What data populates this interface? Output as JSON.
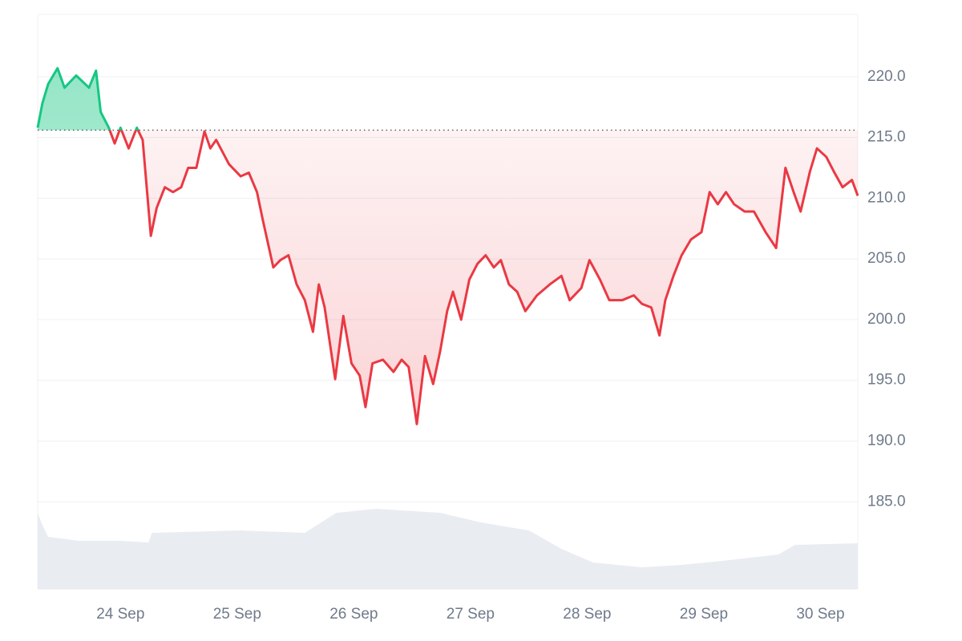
{
  "chart_data": {
    "type": "line",
    "x": [
      23.29,
      23.33,
      23.38,
      23.46,
      23.52,
      23.62,
      23.73,
      23.79,
      23.83,
      23.9,
      23.95,
      24.0,
      24.07,
      24.14,
      24.19,
      24.26,
      24.31,
      24.38,
      24.45,
      24.52,
      24.58,
      24.65,
      24.72,
      24.77,
      24.82,
      24.93,
      25.03,
      25.1,
      25.17,
      25.22,
      25.31,
      25.37,
      25.44,
      25.51,
      25.58,
      25.65,
      25.7,
      25.75,
      25.84,
      25.91,
      25.98,
      26.05,
      26.1,
      26.16,
      26.25,
      26.34,
      26.41,
      26.47,
      26.54,
      26.61,
      26.68,
      26.74,
      26.8,
      26.85,
      26.92,
      26.99,
      27.06,
      27.13,
      27.2,
      27.26,
      27.33,
      27.4,
      27.47,
      27.57,
      27.68,
      27.78,
      27.85,
      27.95,
      28.02,
      28.11,
      28.19,
      28.3,
      28.4,
      28.47,
      28.55,
      28.62,
      28.67,
      28.74,
      28.81,
      28.89,
      28.98,
      29.05,
      29.12,
      29.19,
      29.26,
      29.35,
      29.43,
      29.53,
      29.62,
      29.7,
      29.77,
      29.83,
      29.91,
      29.97,
      30.05,
      30.12,
      30.19,
      30.27,
      30.32
    ],
    "series": [
      {
        "values": [
          215.8,
          217.8,
          219.4,
          220.7,
          219.1,
          220.1,
          219.1,
          220.5,
          217.1,
          215.8,
          214.5,
          215.8,
          214.1,
          215.8,
          214.8,
          206.9,
          209.2,
          210.9,
          210.5,
          210.9,
          212.5,
          212.5,
          215.5,
          214.1,
          214.8,
          212.8,
          211.8,
          212.1,
          210.5,
          208.2,
          204.3,
          204.9,
          205.3,
          202.9,
          201.6,
          199.0,
          202.9,
          201.0,
          195.1,
          200.3,
          196.4,
          195.4,
          192.8,
          196.4,
          196.7,
          195.7,
          196.7,
          196.1,
          191.4,
          197.0,
          194.7,
          197.4,
          200.7,
          202.3,
          200.0,
          203.3,
          204.6,
          205.3,
          204.3,
          204.9,
          202.9,
          202.3,
          200.7,
          202.0,
          202.9,
          203.6,
          201.6,
          202.6,
          204.9,
          203.3,
          201.6,
          201.6,
          202.0,
          201.3,
          201.0,
          198.7,
          201.6,
          203.6,
          205.3,
          206.6,
          207.2,
          210.5,
          209.5,
          210.5,
          209.5,
          208.9,
          208.9,
          207.2,
          205.9,
          212.5,
          210.5,
          208.9,
          212.2,
          214.1,
          213.4,
          212.1,
          210.9,
          211.5,
          210.2
        ]
      }
    ],
    "reference": 215.6,
    "up_color": "#16c784",
    "down_color": "#ea3943",
    "volume": {
      "x": [
        23.29,
        23.33,
        23.38,
        23.65,
        24.0,
        24.24,
        24.27,
        25.03,
        25.58,
        25.85,
        26.19,
        26.74,
        27.09,
        27.5,
        27.78,
        28.05,
        28.47,
        28.81,
        29.16,
        29.64,
        29.78,
        30.32
      ],
      "values": [
        95,
        80,
        65,
        60,
        60,
        58,
        70,
        73,
        70,
        95,
        100,
        95,
        83,
        73,
        50,
        33,
        27,
        30,
        35,
        43,
        55,
        57
      ],
      "color": "#e9edf2"
    },
    "xlim": [
      23.29,
      30.32
    ],
    "ylim": [
      177.83,
      225.13
    ],
    "xticks": [
      {
        "value": 24,
        "label": "24 Sep"
      },
      {
        "value": 25,
        "label": "25 Sep"
      },
      {
        "value": 26,
        "label": "26 Sep"
      },
      {
        "value": 27,
        "label": "27 Sep"
      },
      {
        "value": 28,
        "label": "28 Sep"
      },
      {
        "value": 29,
        "label": "29 Sep"
      },
      {
        "value": 30,
        "label": "30 Sep"
      }
    ],
    "yticks": [
      {
        "value": 185,
        "label": "185.0"
      },
      {
        "value": 190,
        "label": "190.0"
      },
      {
        "value": 195,
        "label": "195.0"
      },
      {
        "value": 200,
        "label": "200.0"
      },
      {
        "value": 205,
        "label": "205.0"
      },
      {
        "value": 210,
        "label": "210.0"
      },
      {
        "value": 215,
        "label": "215.0"
      },
      {
        "value": 220,
        "label": "220.0"
      }
    ],
    "grid": true
  }
}
